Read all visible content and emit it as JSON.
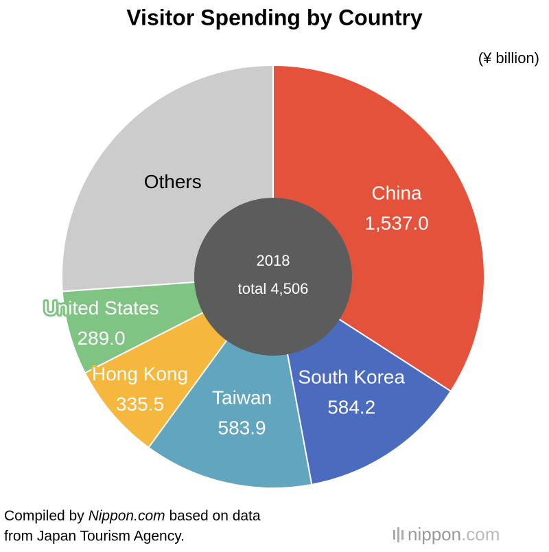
{
  "chart_data": {
    "type": "donut",
    "title": "Visitor Spending by Country",
    "subtitle": "(¥ billion)",
    "center_title": "2018",
    "center_text": "total 4,506",
    "categories": [
      "China",
      "South Korea",
      "Taiwan",
      "Hong Kong",
      "United States",
      "Others"
    ],
    "values": [
      1537.0,
      584.2,
      583.9,
      335.5,
      289.0,
      1176.4
    ],
    "value_labels": [
      "1,537.0",
      "584.2",
      "583.9",
      "335.5",
      "289.0",
      null
    ],
    "colors": [
      "#e4523b",
      "#4b6bbf",
      "#62a5bf",
      "#f5b73d",
      "#80c484",
      "#cccccc"
    ],
    "center_color": "#5c5c5c",
    "source": {
      "prefix": "Compiled by ",
      "site": "Nippon.com",
      "suffix": " based on data",
      "line2": "from Japan Tourism Agency."
    },
    "logo": {
      "name": "nippon",
      "domain": ".com"
    }
  }
}
